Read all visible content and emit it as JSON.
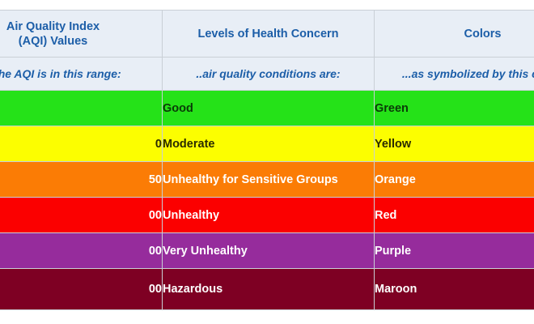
{
  "header": {
    "col1": "Air Quality Index\n(AQI) Values",
    "col2": "Levels of Health Concern",
    "col3": "Colors"
  },
  "subheader": {
    "col1": "...the AQI is in this range:",
    "col2": "..air quality conditions are:",
    "col3": "...as symbolized by this color:"
  },
  "rows": [
    {
      "range": "",
      "concern": "Good",
      "color": "Green"
    },
    {
      "range": "0",
      "concern": "Moderate",
      "color": "Yellow"
    },
    {
      "range": "50",
      "concern": "Unhealthy for Sensitive Groups",
      "color": "Orange"
    },
    {
      "range": "00",
      "concern": "Unhealthy",
      "color": "Red"
    },
    {
      "range": "00",
      "concern": "Very Unhealthy",
      "color": "Purple"
    },
    {
      "range": "00",
      "concern": "Hazardous",
      "color": "Maroon"
    }
  ],
  "colors": {
    "header_bg": "#e8eef6",
    "header_text": "#1c5ea8",
    "green": "#25e218",
    "yellow": "#fcfe00",
    "orange": "#fb7c05",
    "red": "#fb0000",
    "purple": "#962c9c",
    "maroon": "#7e0023"
  }
}
